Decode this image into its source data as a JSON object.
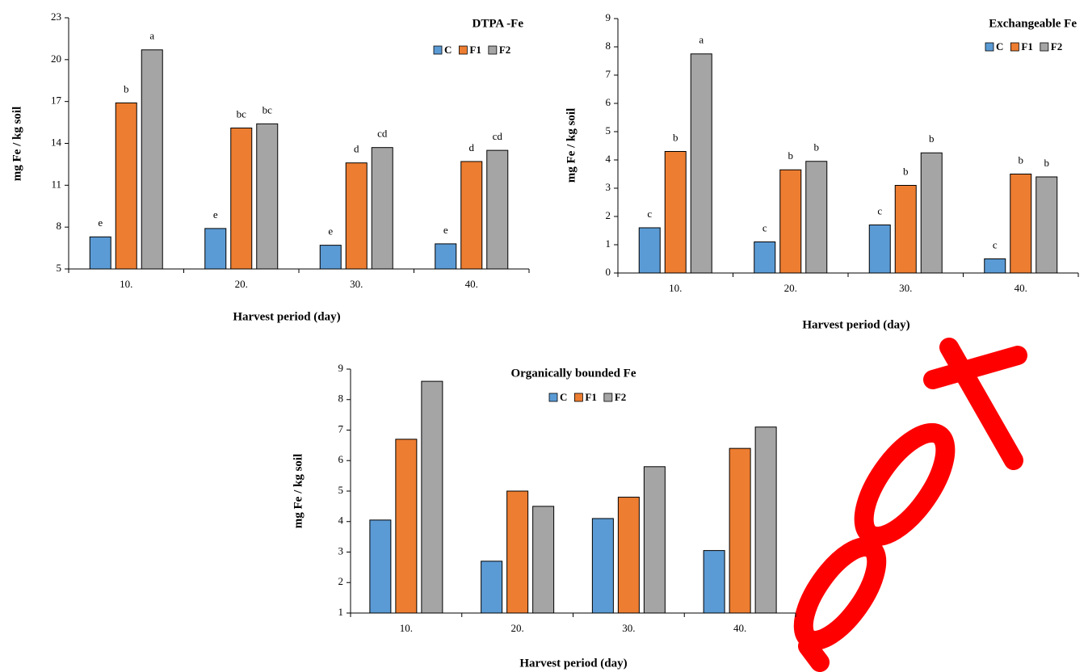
{
  "chart_data": [
    {
      "type": "bar",
      "title": "DTPA -Fe",
      "x_label": "Harvest period (day)",
      "y_label": "mg Fe / kg soil",
      "categories": [
        "10.",
        "20.",
        "30.",
        "40."
      ],
      "series": [
        {
          "name": "C",
          "color": "#5b9bd5",
          "values": [
            7.3,
            7.9,
            6.7,
            6.8
          ],
          "labels": [
            "e",
            "e",
            "e",
            "e"
          ]
        },
        {
          "name": "F1",
          "color": "#ed7d31",
          "values": [
            16.9,
            15.1,
            12.6,
            12.7
          ],
          "labels": [
            "b",
            "bc",
            "d",
            "d"
          ]
        },
        {
          "name": "F2",
          "color": "#a5a5a5",
          "values": [
            20.7,
            15.4,
            13.7,
            13.5
          ],
          "labels": [
            "a",
            "bc",
            "cd",
            "cd"
          ]
        }
      ],
      "ylim": [
        5,
        23
      ],
      "yticks": [
        5,
        8,
        11,
        14,
        17,
        20,
        23
      ]
    },
    {
      "type": "bar",
      "title": "Exchangeable Fe",
      "x_label": "Harvest period (day)",
      "y_label": "mg Fe / kg soil",
      "categories": [
        "10.",
        "20.",
        "30.",
        "40."
      ],
      "series": [
        {
          "name": "C",
          "color": "#5b9bd5",
          "values": [
            1.6,
            1.1,
            1.7,
            0.5
          ],
          "labels": [
            "c",
            "c",
            "c",
            "c"
          ]
        },
        {
          "name": "F1",
          "color": "#ed7d31",
          "values": [
            4.3,
            3.65,
            3.1,
            3.5
          ],
          "labels": [
            "b",
            "b",
            "b",
            "b"
          ]
        },
        {
          "name": "F2",
          "color": "#a5a5a5",
          "values": [
            7.75,
            3.95,
            4.25,
            3.4
          ],
          "labels": [
            "a",
            "b",
            "b",
            "b"
          ]
        }
      ],
      "ylim": [
        0,
        9
      ],
      "yticks": [
        0,
        1,
        2,
        3,
        4,
        5,
        6,
        7,
        8,
        9
      ]
    },
    {
      "type": "bar",
      "title": "Organically bounded Fe",
      "x_label": "Harvest period (day)",
      "y_label": "mg Fe / kg soil",
      "categories": [
        "10.",
        "20.",
        "30.",
        "40."
      ],
      "series": [
        {
          "name": "C",
          "color": "#5b9bd5",
          "values": [
            4.05,
            2.7,
            4.1,
            3.05
          ]
        },
        {
          "name": "F1",
          "color": "#ed7d31",
          "values": [
            6.7,
            5.0,
            4.8,
            6.4
          ]
        },
        {
          "name": "F2",
          "color": "#a5a5a5",
          "values": [
            8.6,
            4.5,
            5.8,
            7.1
          ]
        }
      ],
      "ylim": [
        1,
        9
      ],
      "yticks": [
        1,
        2,
        3,
        4,
        5,
        6,
        7,
        8,
        9
      ]
    }
  ]
}
